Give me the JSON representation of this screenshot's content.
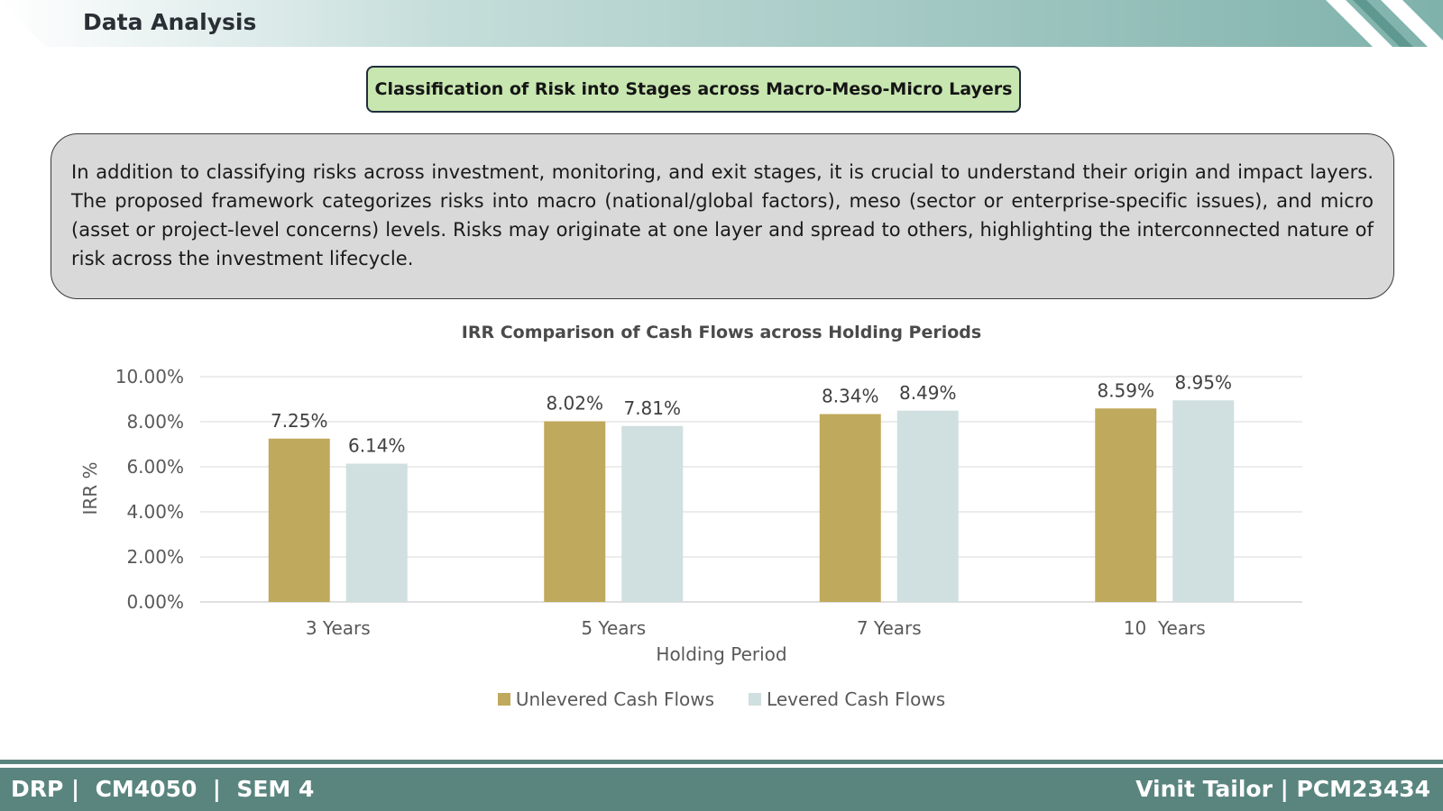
{
  "header": {
    "title": "Data Analysis"
  },
  "slide_heading": "Classification of Risk into Stages across Macro-Meso-Micro Layers",
  "intro_text": "In addition to classifying risks across investment, monitoring, and exit stages, it is crucial to understand their origin and impact layers. The proposed framework categorizes risks into macro (national/global factors), meso (sector or enterprise-specific issues), and micro (asset or project-level concerns) levels. Risks may originate at one layer and spread to others, highlighting the interconnected nature of risk across the investment lifecycle.",
  "chart_data": {
    "type": "bar",
    "title": "IRR Comparison of Cash Flows across Holding Periods",
    "xlabel": "Holding Period",
    "ylabel": "IRR %",
    "categories": [
      "3 Years",
      "5 Years",
      "7 Years",
      "10  Years"
    ],
    "series": [
      {
        "name": "Unlevered Cash Flows",
        "color": "#bfa95c",
        "values": [
          7.25,
          8.02,
          8.34,
          8.59
        ],
        "labels": [
          "7.25%",
          "8.02%",
          "8.34%",
          "8.59%"
        ]
      },
      {
        "name": "Levered Cash Flows",
        "color": "#d0dfdf",
        "values": [
          6.14,
          7.81,
          8.49,
          8.95
        ],
        "labels": [
          "6.14%",
          "7.81%",
          "8.49%",
          "8.95%"
        ]
      }
    ],
    "ylim": [
      0,
      10
    ],
    "yticks": [
      0,
      2,
      4,
      6,
      8,
      10
    ],
    "ytick_labels": [
      "0.00%",
      "2.00%",
      "4.00%",
      "6.00%",
      "8.00%",
      "10.00%"
    ],
    "grid": true,
    "legend_position": "bottom"
  },
  "footer": {
    "left": "DRP |  CM4050  |  SEM 4",
    "right": "Vinit Tailor | PCM23434"
  },
  "colors": {
    "footer": "#5a857f",
    "heading_box": "#c8e6b0",
    "intro_box": "#d9d9d9"
  }
}
